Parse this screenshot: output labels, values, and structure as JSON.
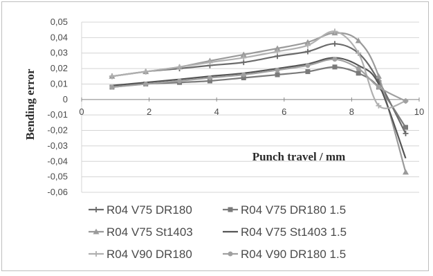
{
  "chart_data": {
    "type": "line",
    "xlabel": "Punch travel / mm",
    "ylabel": "Bending error",
    "xlim": [
      0,
      10
    ],
    "ylim": [
      -0.06,
      0.05
    ],
    "x_ticks": [
      "0",
      "2",
      "4",
      "6",
      "8",
      "10"
    ],
    "y_ticks": [
      "0,05",
      "0,04",
      "0,03",
      "0,02",
      "0,01",
      "0",
      "-0,01",
      "-0,02",
      "-0,03",
      "-0,04",
      "-0,05",
      "-0,06"
    ],
    "grid": "horizontal",
    "legend_position": "bottom",
    "series": [
      {
        "name": "R04 V75 DR180",
        "color": "#6a6a6a",
        "marker": "cross",
        "x": [
          0.9,
          1.9,
          2.9,
          3.8,
          4.8,
          5.8,
          6.7,
          7.5,
          8.2,
          8.8,
          9.6
        ],
        "y": [
          0.015,
          0.018,
          0.02,
          0.022,
          0.024,
          0.028,
          0.031,
          0.036,
          0.03,
          0.012,
          -0.022
        ]
      },
      {
        "name": "R04 V75 DR180 1.5",
        "color": "#7a7a7a",
        "marker": "square",
        "x": [
          0.9,
          1.9,
          2.9,
          3.8,
          4.8,
          5.8,
          6.7,
          7.5,
          8.2,
          8.8,
          9.6
        ],
        "y": [
          0.008,
          0.01,
          0.011,
          0.012,
          0.014,
          0.016,
          0.018,
          0.021,
          0.017,
          0.008,
          -0.018
        ]
      },
      {
        "name": "R04 V75 St1403",
        "color": "#9a9a9a",
        "marker": "triangle",
        "x": [
          0.9,
          1.9,
          2.9,
          3.8,
          4.8,
          5.8,
          6.7,
          7.5,
          8.2,
          8.8,
          9.6
        ],
        "y": [
          0.015,
          0.018,
          0.021,
          0.025,
          0.029,
          0.033,
          0.037,
          0.043,
          0.038,
          0.015,
          -0.047
        ]
      },
      {
        "name": "R04 V75 St1403 1.5",
        "color": "#555555",
        "marker": "none",
        "x": [
          0.9,
          1.9,
          2.9,
          3.8,
          4.8,
          5.8,
          6.7,
          7.5,
          8.2,
          8.8,
          9.6
        ],
        "y": [
          0.009,
          0.011,
          0.013,
          0.015,
          0.017,
          0.02,
          0.023,
          0.027,
          0.022,
          0.01,
          -0.038
        ]
      },
      {
        "name": "R04 V90 DR180",
        "color": "#b0b0b0",
        "marker": "cross",
        "x": [
          0.9,
          1.9,
          2.9,
          3.8,
          4.8,
          5.8,
          6.7,
          7.5,
          8.2,
          8.8,
          9.6
        ],
        "y": [
          0.015,
          0.018,
          0.021,
          0.024,
          0.027,
          0.031,
          0.035,
          0.044,
          0.03,
          -0.004,
          -0.001
        ]
      },
      {
        "name": "R04 V90 DR180 1.5",
        "color": "#a0a0a0",
        "marker": "circle",
        "x": [
          0.9,
          1.9,
          2.9,
          3.8,
          4.8,
          5.8,
          6.7,
          7.5,
          8.2,
          8.8,
          9.6
        ],
        "y": [
          0.008,
          0.01,
          0.012,
          0.014,
          0.016,
          0.019,
          0.022,
          0.026,
          0.02,
          0.008,
          -0.001
        ]
      }
    ]
  }
}
